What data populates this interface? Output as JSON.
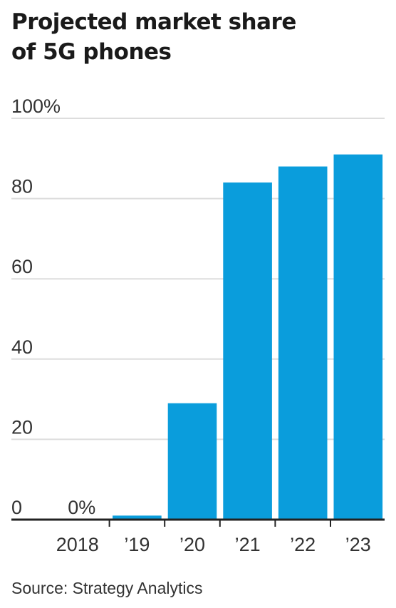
{
  "title_lines": [
    "Projected market share",
    "of 5G phones"
  ],
  "source": "Source: Strategy Analytics",
  "colors": {
    "bar": "#0a9ddc",
    "grid": "#dddddd",
    "axis": "#222222"
  },
  "chart_data": {
    "type": "bar",
    "title": "Projected market share of 5G phones",
    "categories": [
      "2018",
      "’19",
      "’20",
      "’21",
      "’22",
      "’23"
    ],
    "values": [
      0,
      1,
      29,
      84,
      88,
      91
    ],
    "value_labels": [
      "0%",
      "",
      "",
      "",
      "",
      ""
    ],
    "ylim": [
      0,
      100
    ],
    "yticks": [
      0,
      20,
      40,
      60,
      80,
      100
    ],
    "ytick_labels": [
      "0",
      "20",
      "40",
      "60",
      "80",
      "100%"
    ],
    "grid": true,
    "source": "Strategy Analytics"
  }
}
